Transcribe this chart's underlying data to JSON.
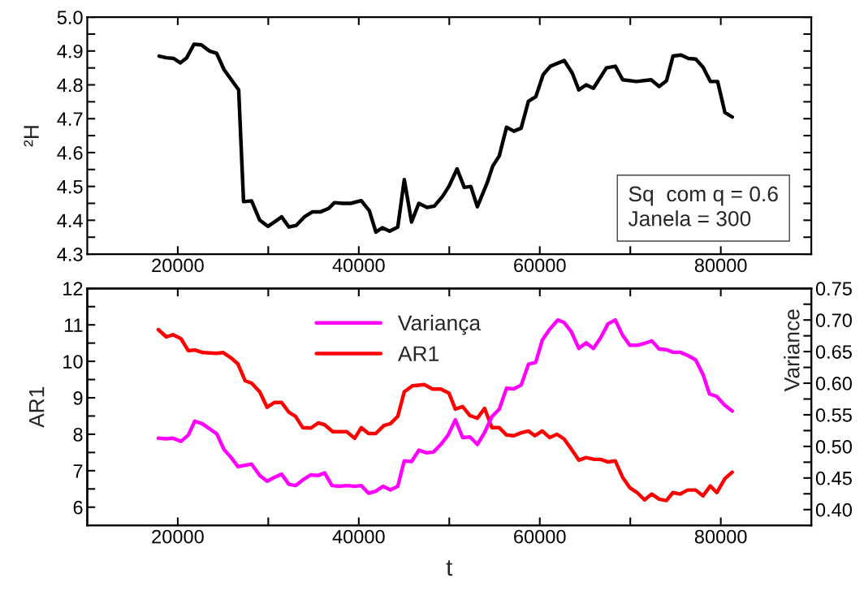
{
  "chart_data": [
    {
      "type": "line",
      "ylabel": "²H",
      "annotations": [
        "Sq  com q = 0.6",
        "Janela = 300"
      ],
      "xlim": [
        10000,
        90000
      ],
      "xticks": [
        20000,
        {
          "value": 30000,
          "label": null
        },
        40000,
        {
          "value": 50000,
          "label": null
        },
        60000,
        {
          "value": 70000,
          "label": null
        },
        80000
      ],
      "ylim": [
        4.3,
        5.0
      ],
      "yticks": [
        {
          "value": 4.3,
          "label": "4.3"
        },
        {
          "value": 4.35,
          "label": null
        },
        {
          "value": 4.4,
          "label": "4.4"
        },
        {
          "value": 4.45,
          "label": null
        },
        {
          "value": 4.5,
          "label": "4.5"
        },
        {
          "value": 4.55,
          "label": null
        },
        {
          "value": 4.6,
          "label": "4.6"
        },
        {
          "value": 4.65,
          "label": null
        },
        {
          "value": 4.7,
          "label": "4.7"
        },
        {
          "value": 4.75,
          "label": null
        },
        {
          "value": 4.8,
          "label": "4.8"
        },
        {
          "value": 4.85,
          "label": null
        },
        {
          "value": 4.9,
          "label": "4.9"
        },
        {
          "value": 4.95,
          "label": null
        },
        {
          "value": 5.0,
          "label": "5.0"
        }
      ],
      "grid": false,
      "legend": false,
      "series": [
        {
          "color": "#000000",
          "x": [
            17940,
            18740,
            19550,
            20270,
            20990,
            21790,
            22600,
            23500,
            24300,
            25110,
            25920,
            26730,
            27270,
            28160,
            29060,
            29960,
            30850,
            31480,
            32290,
            33100,
            33990,
            34890,
            35790,
            36680,
            37310,
            38210,
            39110,
            40270,
            41170,
            41890,
            42600,
            43410,
            44310,
            45030,
            45830,
            46640,
            47540,
            48350,
            49240,
            49960,
            50860,
            51660,
            52380,
            53100,
            54180,
            54800,
            55520,
            56330,
            57140,
            57940,
            58750,
            59560,
            60370,
            61170,
            62700,
            63590,
            64310,
            65120,
            65930,
            67360,
            68350,
            69160,
            70680,
            72300,
            73190,
            74000,
            74720,
            75610,
            76420,
            77230,
            78040,
            78840,
            79650,
            80460,
            81270
          ],
          "values": [
            4.885,
            4.88,
            4.878,
            4.865,
            4.88,
            4.92,
            4.918,
            4.9,
            4.893,
            4.845,
            4.815,
            4.785,
            4.455,
            4.457,
            4.4,
            4.382,
            4.398,
            4.41,
            4.38,
            4.385,
            4.41,
            4.425,
            4.425,
            4.435,
            4.452,
            4.45,
            4.45,
            4.458,
            4.428,
            4.365,
            4.378,
            4.368,
            4.38,
            4.52,
            4.395,
            4.45,
            4.438,
            4.442,
            4.47,
            4.5,
            4.552,
            4.497,
            4.5,
            4.44,
            4.51,
            4.56,
            4.59,
            4.675,
            4.663,
            4.672,
            4.752,
            4.765,
            4.83,
            4.855,
            4.872,
            4.835,
            4.785,
            4.8,
            4.79,
            4.85,
            4.855,
            4.815,
            4.81,
            4.815,
            4.795,
            4.812,
            4.885,
            4.888,
            4.878,
            4.876,
            4.852,
            4.81,
            4.81,
            4.718,
            4.705
          ]
        }
      ]
    },
    {
      "type": "line",
      "xlabel": "t",
      "ylabel": "AR1",
      "y2label": "Variance",
      "xlim": [
        10000,
        90000
      ],
      "xticks": [
        20000,
        {
          "value": 30000,
          "label": null
        },
        40000,
        {
          "value": 50000,
          "label": null
        },
        60000,
        {
          "value": 70000,
          "label": null
        },
        80000
      ],
      "ylim": [
        5.5,
        12
      ],
      "yticks": [
        6,
        {
          "value": 6.5,
          "label": null
        },
        7,
        {
          "value": 7.5,
          "label": null
        },
        8,
        {
          "value": 8.5,
          "label": null
        },
        9,
        {
          "value": 9.5,
          "label": null
        },
        10,
        {
          "value": 10.5,
          "label": null
        },
        11,
        {
          "value": 11.5,
          "label": null
        },
        12
      ],
      "y2lim": [
        0.375,
        0.75
      ],
      "y2ticks": [
        {
          "value": 0.4,
          "label": "0.40"
        },
        {
          "value": 0.425,
          "label": null
        },
        {
          "value": 0.45,
          "label": "0.45"
        },
        {
          "value": 0.475,
          "label": null
        },
        {
          "value": 0.5,
          "label": "0.50"
        },
        {
          "value": 0.525,
          "label": null
        },
        {
          "value": 0.55,
          "label": "0.55"
        },
        {
          "value": 0.575,
          "label": null
        },
        {
          "value": 0.6,
          "label": "0.60"
        },
        {
          "value": 0.625,
          "label": null
        },
        {
          "value": 0.65,
          "label": "0.65"
        },
        {
          "value": 0.675,
          "label": null
        },
        {
          "value": 0.7,
          "label": "0.70"
        },
        {
          "value": 0.725,
          "label": null
        },
        {
          "value": 0.75,
          "label": "0.75"
        }
      ],
      "grid": false,
      "legend": "top",
      "series": [
        {
          "name": "Variança",
          "color": "#ff00ff",
          "axis": "y2",
          "x": [
            17850,
            18740,
            19460,
            20360,
            21170,
            21880,
            22690,
            24310,
            25110,
            25920,
            26640,
            28160,
            29060,
            29870,
            30670,
            31480,
            32290,
            33010,
            33810,
            34710,
            35520,
            36230,
            37040,
            37850,
            38660,
            39550,
            40270,
            41080,
            41880,
            42690,
            43500,
            44310,
            45020,
            45830,
            46640,
            47450,
            48250,
            49060,
            49870,
            50670,
            51480,
            52290,
            53100,
            53900,
            54710,
            55520,
            56330,
            57130,
            57940,
            58750,
            59550,
            60270,
            61080,
            61980,
            62690,
            63500,
            64310,
            65120,
            65920,
            66730,
            67540,
            68340,
            69150,
            69960,
            70760,
            71570,
            72380,
            73190,
            73990,
            74710,
            75520,
            76330,
            77220,
            78030,
            78750,
            79560,
            80450,
            81260
          ],
          "values": [
            0.513,
            0.512,
            0.513,
            0.508,
            0.518,
            0.54,
            0.536,
            0.52,
            0.495,
            0.482,
            0.468,
            0.472,
            0.454,
            0.445,
            0.451,
            0.456,
            0.44,
            0.438,
            0.447,
            0.455,
            0.454,
            0.458,
            0.438,
            0.437,
            0.438,
            0.437,
            0.438,
            0.426,
            0.429,
            0.437,
            0.431,
            0.437,
            0.477,
            0.476,
            0.494,
            0.49,
            0.491,
            0.503,
            0.518,
            0.542,
            0.514,
            0.515,
            0.503,
            0.522,
            0.547,
            0.559,
            0.592,
            0.591,
            0.597,
            0.63,
            0.633,
            0.668,
            0.685,
            0.7,
            0.696,
            0.681,
            0.655,
            0.664,
            0.655,
            0.672,
            0.694,
            0.7,
            0.676,
            0.66,
            0.66,
            0.663,
            0.667,
            0.654,
            0.653,
            0.649,
            0.649,
            0.644,
            0.637,
            0.614,
            0.583,
            0.579,
            0.565,
            0.556
          ]
        },
        {
          "name": "AR1",
          "color": "#ff0000",
          "x": [
            17850,
            18740,
            19460,
            20360,
            21170,
            21880,
            22780,
            24310,
            25020,
            25920,
            26640,
            27440,
            28160,
            29060,
            29870,
            30670,
            31480,
            32290,
            33010,
            33810,
            34710,
            35520,
            36230,
            37130,
            38660,
            39550,
            40270,
            41080,
            41880,
            42780,
            43500,
            44310,
            45020,
            45920,
            47270,
            48160,
            49060,
            49960,
            50670,
            51480,
            52290,
            53100,
            53900,
            54710,
            55520,
            56330,
            57130,
            57940,
            58750,
            59460,
            60270,
            61080,
            61890,
            62690,
            63410,
            64310,
            65120,
            66010,
            66730,
            67540,
            68340,
            69150,
            69960,
            70760,
            71570,
            72380,
            73190,
            73990,
            74710,
            75520,
            76330,
            77220,
            78030,
            78840,
            79560,
            80450,
            81260
          ],
          "values": [
            10.87,
            10.67,
            10.73,
            10.62,
            10.29,
            10.31,
            10.24,
            10.22,
            10.24,
            10.09,
            9.93,
            9.47,
            9.4,
            9.16,
            8.74,
            8.87,
            8.87,
            8.6,
            8.49,
            8.18,
            8.17,
            8.31,
            8.26,
            8.07,
            8.07,
            7.89,
            8.18,
            8.02,
            8.02,
            8.24,
            8.29,
            8.49,
            9.16,
            9.33,
            9.36,
            9.24,
            9.24,
            9.13,
            8.69,
            8.76,
            8.51,
            8.44,
            8.71,
            8.18,
            8.18,
            7.98,
            7.96,
            8.04,
            8.09,
            7.96,
            8.09,
            7.91,
            8.0,
            7.87,
            7.62,
            7.29,
            7.36,
            7.31,
            7.31,
            7.24,
            7.27,
            6.82,
            6.53,
            6.4,
            6.2,
            6.36,
            6.22,
            6.18,
            6.4,
            6.36,
            6.47,
            6.47,
            6.31,
            6.58,
            6.4,
            6.78,
            6.96
          ]
        }
      ]
    }
  ]
}
